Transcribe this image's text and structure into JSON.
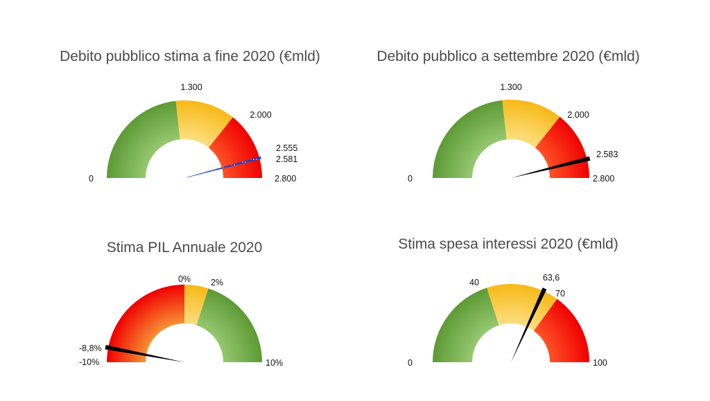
{
  "colors": {
    "green_light": "#9bcc76",
    "green_dark": "#5d9a35",
    "yellow_light": "#fde28a",
    "yellow_dark": "#f7b917",
    "red_light": "#ff5a2a",
    "red_dark": "#f00000",
    "orange_light": "#f7a03a",
    "orange_dark": "#f07a14",
    "needle_blue": "#1f3fbf",
    "needle_black": "#000000"
  },
  "chart_data": [
    {
      "type": "gauge",
      "title": "Debito pubblico stima a fine 2020 (€mld)",
      "min": 0,
      "max": 2800,
      "segments": [
        {
          "from": 0,
          "to": 1300,
          "color": "green"
        },
        {
          "from": 1300,
          "to": 2000,
          "color": "yellow"
        },
        {
          "from": 2000,
          "to": 2800,
          "color": "red"
        }
      ],
      "needle": {
        "from": 2555,
        "to": 2581,
        "style": "blue-dotted"
      },
      "tick_labels": [
        "0",
        "1.300",
        "2.000",
        "2.555",
        "2.581",
        "2.800"
      ]
    },
    {
      "type": "gauge",
      "title": "Debito pubblico a settembre 2020 (€mld)",
      "min": 0,
      "max": 2800,
      "segments": [
        {
          "from": 0,
          "to": 1300,
          "color": "green"
        },
        {
          "from": 1300,
          "to": 2000,
          "color": "yellow"
        },
        {
          "from": 2000,
          "to": 2800,
          "color": "red"
        }
      ],
      "needle": {
        "value": 2583,
        "style": "black"
      },
      "tick_labels": [
        "0",
        "1.300",
        "2.000",
        "2.583",
        "2.800"
      ]
    },
    {
      "type": "gauge",
      "title": "Stima PIL Annuale 2020",
      "min": -10,
      "max": 10,
      "unit": "%",
      "segments": [
        {
          "from": -10,
          "to": 0,
          "color": "red-orange"
        },
        {
          "from": 0,
          "to": 2,
          "color": "yellow"
        },
        {
          "from": 2,
          "to": 10,
          "color": "green"
        }
      ],
      "needle": {
        "value": -8.8,
        "style": "black"
      },
      "tick_labels": [
        "-8,8%",
        "-10%",
        "0%",
        "2%",
        "10%"
      ]
    },
    {
      "type": "gauge",
      "title": "Stima spesa interessi 2020 (€mld)",
      "min": 0,
      "max": 100,
      "segments": [
        {
          "from": 0,
          "to": 40,
          "color": "green"
        },
        {
          "from": 40,
          "to": 70,
          "color": "yellow"
        },
        {
          "from": 70,
          "to": 100,
          "color": "red"
        }
      ],
      "needle": {
        "value": 63.6,
        "style": "black"
      },
      "tick_labels": [
        "0",
        "40",
        "63,6",
        "70",
        "100"
      ]
    }
  ]
}
